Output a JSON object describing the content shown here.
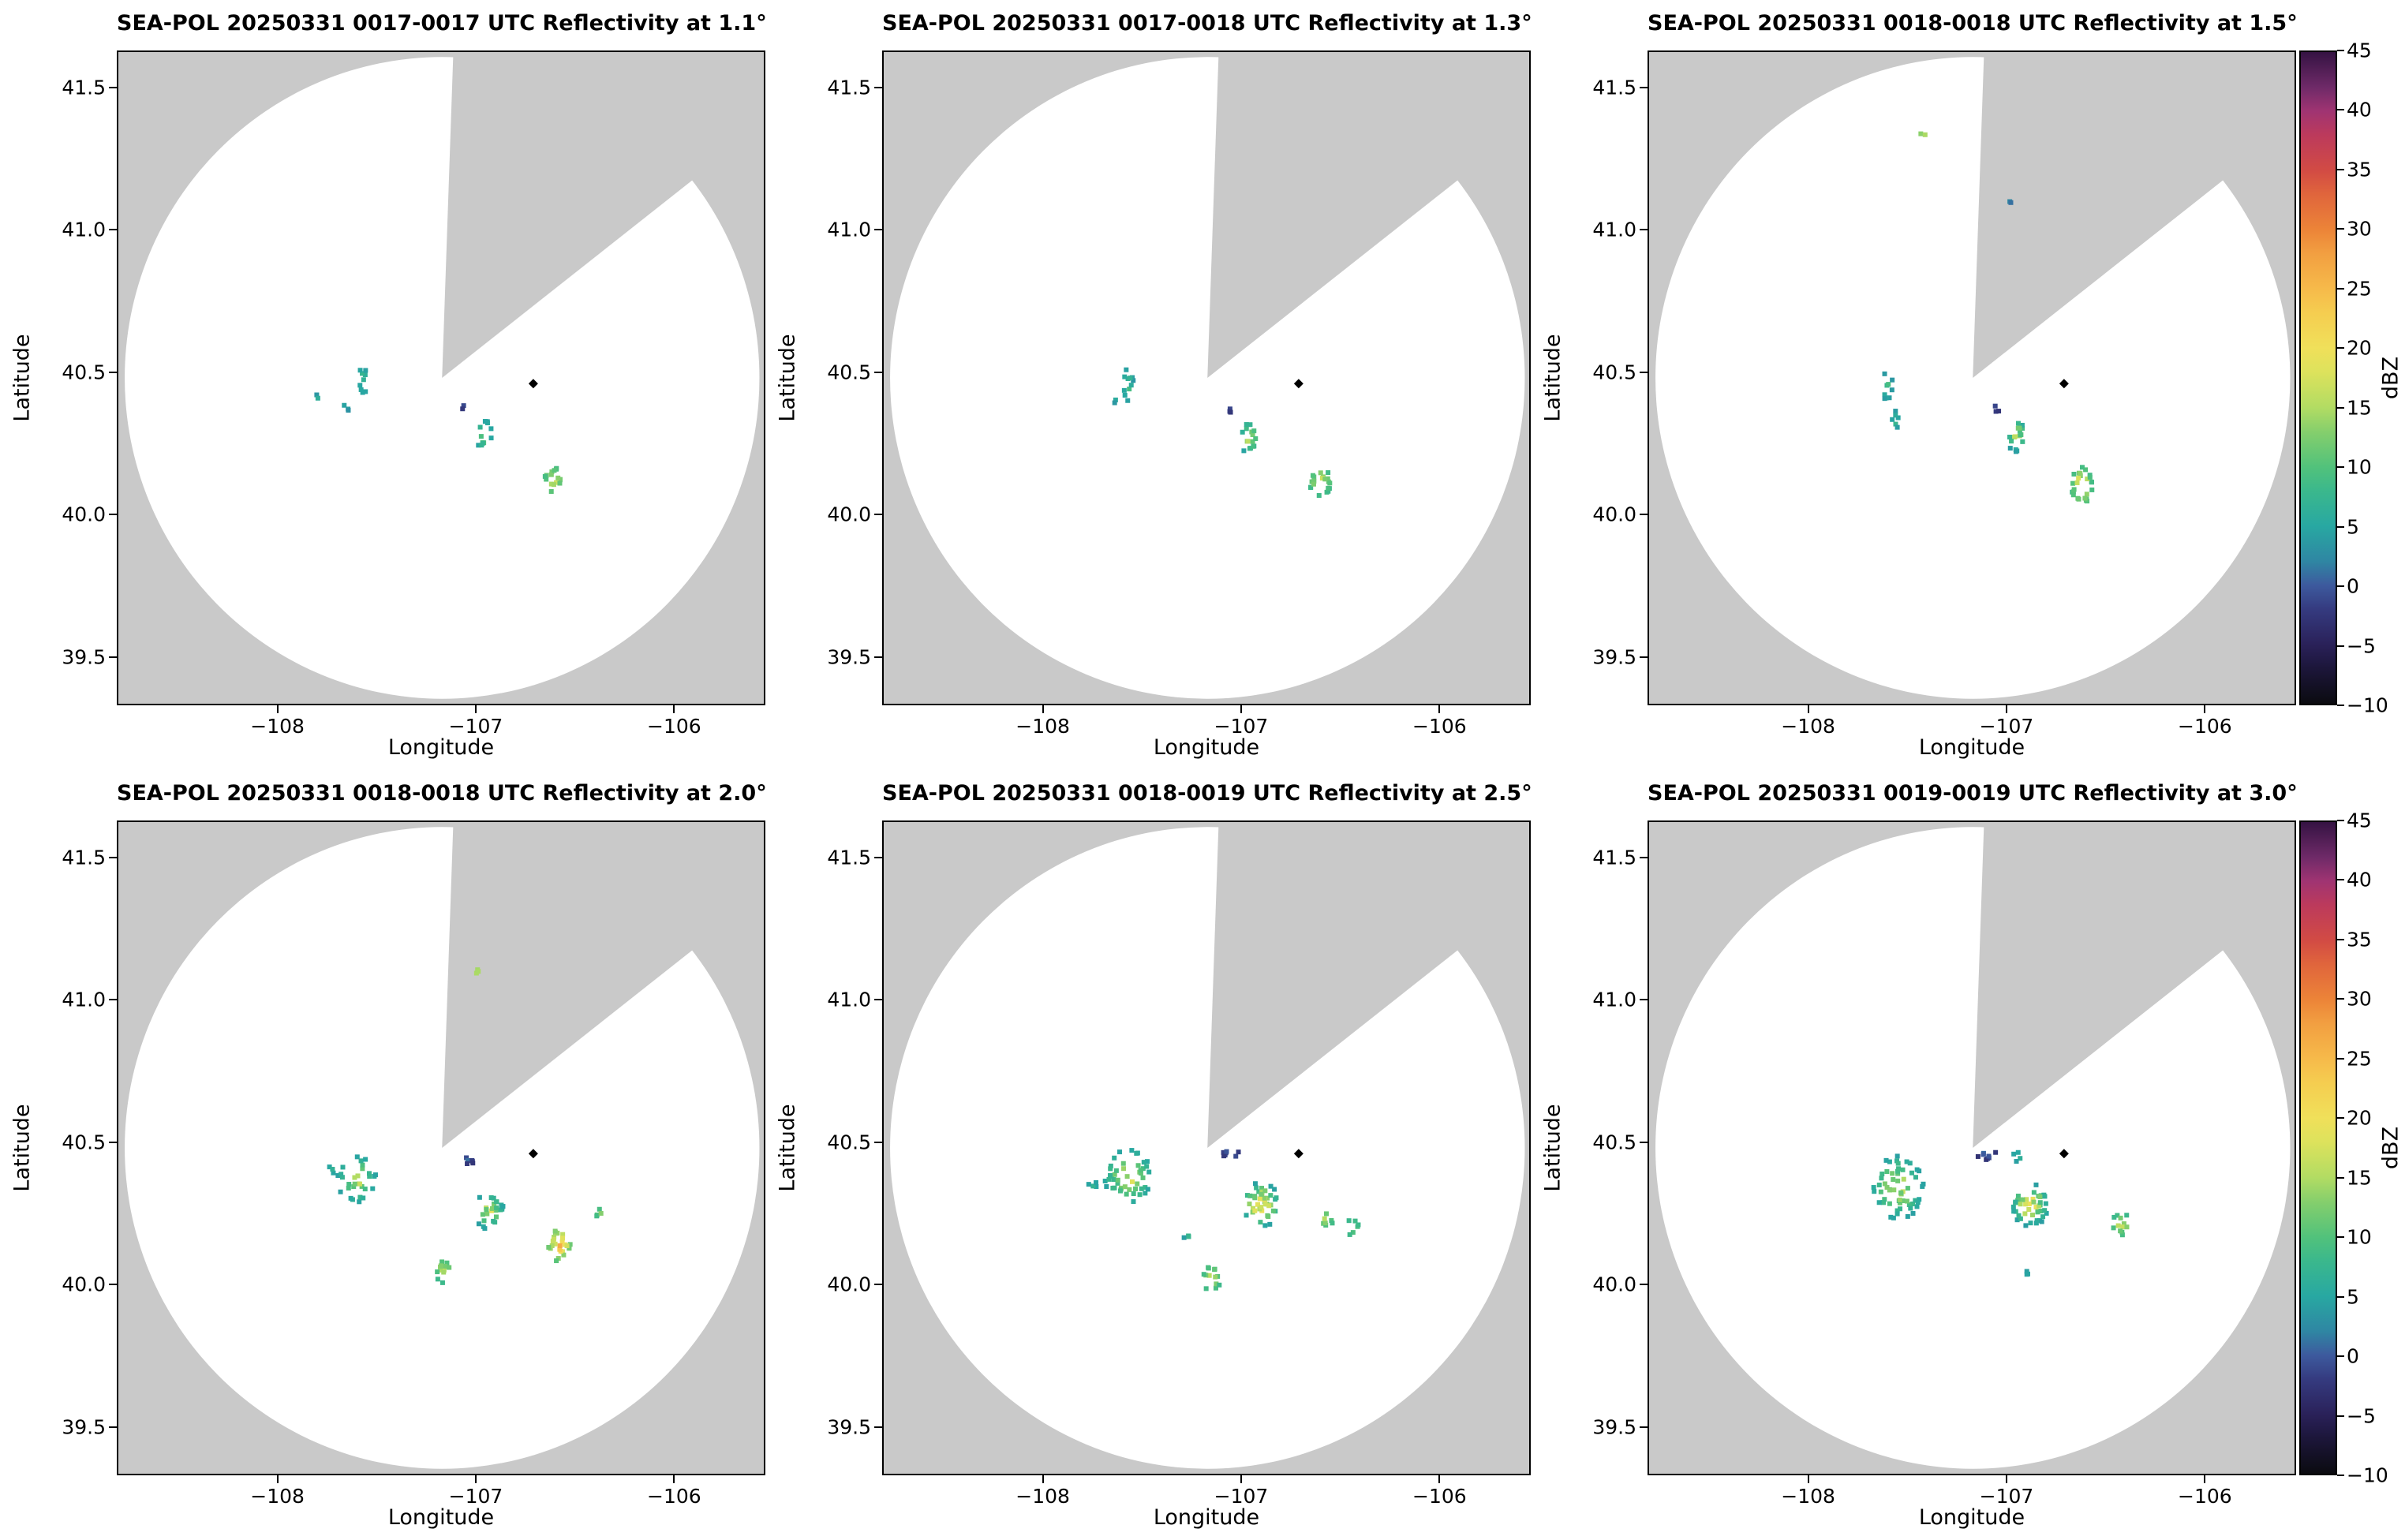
{
  "chart_data": {
    "type": "heatmap",
    "units": "dBZ",
    "axes": {
      "xlabel": "Longitude",
      "ylabel": "Latitude",
      "xlim": [
        -108.81,
        -105.54
      ],
      "ylim": [
        39.33,
        41.63
      ],
      "xticks": [
        {
          "v": -108,
          "label": "−108"
        },
        {
          "v": -107,
          "label": "−107"
        },
        {
          "v": -106,
          "label": "−106"
        }
      ],
      "yticks": [
        {
          "v": 39.5,
          "label": "39.5"
        },
        {
          "v": 40.0,
          "label": "40.0"
        },
        {
          "v": 40.5,
          "label": "40.5"
        },
        {
          "v": 41.0,
          "label": "41.0"
        },
        {
          "v": 41.5,
          "label": "41.5"
        }
      ]
    },
    "colorbar": {
      "label": "dBZ",
      "min": -10,
      "max": 45,
      "ticks": [
        {
          "v": 45,
          "label": "45"
        },
        {
          "v": 40,
          "label": "40"
        },
        {
          "v": 35,
          "label": "35"
        },
        {
          "v": 30,
          "label": "30"
        },
        {
          "v": 25,
          "label": "25"
        },
        {
          "v": 20,
          "label": "20"
        },
        {
          "v": 15,
          "label": "15"
        },
        {
          "v": 10,
          "label": "10"
        },
        {
          "v": 5,
          "label": "5"
        },
        {
          "v": 0,
          "label": "0"
        },
        {
          "v": -5,
          "label": "−5"
        },
        {
          "v": -10,
          "label": "−10"
        }
      ],
      "stops": [
        {
          "v": -10,
          "c": "#0b0b10"
        },
        {
          "v": -7,
          "c": "#1c163a"
        },
        {
          "v": -5,
          "c": "#2a2159"
        },
        {
          "v": -2,
          "c": "#353b80"
        },
        {
          "v": 0,
          "c": "#3d5a9e"
        },
        {
          "v": 2,
          "c": "#2f86a3"
        },
        {
          "v": 5,
          "c": "#28a8a2"
        },
        {
          "v": 8,
          "c": "#3bb88c"
        },
        {
          "v": 10,
          "c": "#52c27b"
        },
        {
          "v": 13,
          "c": "#86cf6c"
        },
        {
          "v": 15,
          "c": "#b2dc63"
        },
        {
          "v": 18,
          "c": "#dde25c"
        },
        {
          "v": 20,
          "c": "#f0e05a"
        },
        {
          "v": 23,
          "c": "#f5cd50"
        },
        {
          "v": 25,
          "c": "#f6ba4a"
        },
        {
          "v": 28,
          "c": "#f29f41"
        },
        {
          "v": 30,
          "c": "#ec8438"
        },
        {
          "v": 33,
          "c": "#e0653c"
        },
        {
          "v": 35,
          "c": "#d24b44"
        },
        {
          "v": 38,
          "c": "#bc3a5c"
        },
        {
          "v": 40,
          "c": "#a03472"
        },
        {
          "v": 42,
          "c": "#6f2a68"
        },
        {
          "v": 45,
          "c": "#351343"
        }
      ]
    },
    "radar": {
      "outside_color": "#c9c9c9",
      "coverage_color": "#ffffff",
      "center_lon": -107.17,
      "center_lat": 40.48,
      "radius_lon_deg": 1.6,
      "radius_lat_deg": 1.127,
      "wedge_az1": 2,
      "wedge_az2": 52,
      "marker_lon": -106.71,
      "marker_lat": 40.46
    },
    "panels": [
      {
        "title": "SEA-POL 20250331 0017-0017 UTC Reflectivity at 1.1°",
        "elevation_deg": 1.1,
        "clusters": [
          {
            "lon": -107.57,
            "lat": 40.47,
            "rx": 0.025,
            "ry": 0.065,
            "n": 9,
            "dbz": [
              3,
              13
            ]
          },
          {
            "lon": -107.65,
            "lat": 40.38,
            "rx": 0.02,
            "ry": 0.015,
            "n": 3,
            "dbz": [
              3,
              9
            ]
          },
          {
            "lon": -107.8,
            "lat": 40.41,
            "rx": 0.012,
            "ry": 0.012,
            "n": 2,
            "dbz": [
              3,
              8
            ]
          },
          {
            "lon": -107.06,
            "lat": 40.38,
            "rx": 0.012,
            "ry": 0.015,
            "n": 2,
            "dbz": [
              -3,
              1
            ]
          },
          {
            "lon": -106.96,
            "lat": 40.28,
            "rx": 0.045,
            "ry": 0.055,
            "n": 13,
            "dbz": [
              4,
              17
            ]
          },
          {
            "lon": -106.61,
            "lat": 40.12,
            "rx": 0.05,
            "ry": 0.05,
            "n": 16,
            "dbz": [
              8,
              23
            ]
          }
        ]
      },
      {
        "title": "SEA-POL 20250331 0017-0018 UTC Reflectivity at 1.3°",
        "elevation_deg": 1.3,
        "clusters": [
          {
            "lon": -107.57,
            "lat": 40.46,
            "rx": 0.028,
            "ry": 0.075,
            "n": 11,
            "dbz": [
              3,
              13
            ]
          },
          {
            "lon": -107.63,
            "lat": 40.4,
            "rx": 0.015,
            "ry": 0.012,
            "n": 2,
            "dbz": [
              3,
              8
            ]
          },
          {
            "lon": -107.06,
            "lat": 40.375,
            "rx": 0.015,
            "ry": 0.02,
            "n": 3,
            "dbz": [
              -3,
              2
            ]
          },
          {
            "lon": -106.96,
            "lat": 40.27,
            "rx": 0.05,
            "ry": 0.06,
            "n": 17,
            "dbz": [
              4,
              21
            ]
          },
          {
            "lon": -106.6,
            "lat": 40.115,
            "rx": 0.055,
            "ry": 0.05,
            "n": 20,
            "dbz": [
              8,
              24
            ]
          }
        ]
      },
      {
        "title": "SEA-POL 20250331 0018-0018 UTC Reflectivity at 1.5°",
        "elevation_deg": 1.5,
        "clusters": [
          {
            "lon": -107.42,
            "lat": 41.33,
            "rx": 0.018,
            "ry": 0.012,
            "n": 2,
            "dbz": [
              13,
              18
            ]
          },
          {
            "lon": -106.99,
            "lat": 41.1,
            "rx": 0.02,
            "ry": 0.008,
            "n": 2,
            "dbz": [
              0,
              6
            ]
          },
          {
            "lon": -107.6,
            "lat": 40.45,
            "rx": 0.028,
            "ry": 0.06,
            "n": 9,
            "dbz": [
              3,
              12
            ]
          },
          {
            "lon": -107.56,
            "lat": 40.33,
            "rx": 0.022,
            "ry": 0.038,
            "n": 6,
            "dbz": [
              3,
              11
            ]
          },
          {
            "lon": -107.05,
            "lat": 40.375,
            "rx": 0.015,
            "ry": 0.02,
            "n": 3,
            "dbz": [
              -3,
              2
            ]
          },
          {
            "lon": -106.95,
            "lat": 40.28,
            "rx": 0.05,
            "ry": 0.06,
            "n": 18,
            "dbz": [
              4,
              21
            ]
          },
          {
            "lon": -106.62,
            "lat": 40.1,
            "rx": 0.055,
            "ry": 0.07,
            "n": 26,
            "dbz": [
              8,
              28
            ]
          }
        ]
      },
      {
        "title": "SEA-POL 20250331 0018-0018 UTC Reflectivity at 2.0°",
        "elevation_deg": 2.0,
        "clusters": [
          {
            "lon": -107.0,
            "lat": 41.1,
            "rx": 0.025,
            "ry": 0.01,
            "n": 3,
            "dbz": [
              13,
              19
            ]
          },
          {
            "lon": -107.6,
            "lat": 40.37,
            "rx": 0.1,
            "ry": 0.085,
            "n": 30,
            "dbz": [
              4,
              21
            ]
          },
          {
            "lon": -107.73,
            "lat": 40.4,
            "rx": 0.02,
            "ry": 0.02,
            "n": 3,
            "dbz": [
              4,
              10
            ]
          },
          {
            "lon": -107.04,
            "lat": 40.44,
            "rx": 0.045,
            "ry": 0.018,
            "n": 6,
            "dbz": [
              -3,
              3
            ]
          },
          {
            "lon": -106.93,
            "lat": 40.26,
            "rx": 0.075,
            "ry": 0.07,
            "n": 28,
            "dbz": [
              4,
              21
            ]
          },
          {
            "lon": -107.16,
            "lat": 40.05,
            "rx": 0.045,
            "ry": 0.045,
            "n": 13,
            "dbz": [
              8,
              20
            ]
          },
          {
            "lon": -106.58,
            "lat": 40.14,
            "rx": 0.065,
            "ry": 0.06,
            "n": 26,
            "dbz": [
              10,
              29
            ]
          },
          {
            "lon": -106.37,
            "lat": 40.25,
            "rx": 0.03,
            "ry": 0.02,
            "n": 4,
            "dbz": [
              8,
              15
            ]
          }
        ]
      },
      {
        "title": "SEA-POL 20250331 0018-0019 UTC Reflectivity at 2.5°",
        "elevation_deg": 2.5,
        "clusters": [
          {
            "lon": -107.57,
            "lat": 40.38,
            "rx": 0.125,
            "ry": 0.1,
            "n": 48,
            "dbz": [
              4,
              24
            ]
          },
          {
            "lon": -107.75,
            "lat": 40.35,
            "rx": 0.025,
            "ry": 0.02,
            "n": 4,
            "dbz": [
              4,
              10
            ]
          },
          {
            "lon": -107.05,
            "lat": 40.46,
            "rx": 0.05,
            "ry": 0.02,
            "n": 7,
            "dbz": [
              -3,
              4
            ]
          },
          {
            "lon": -106.9,
            "lat": 40.28,
            "rx": 0.095,
            "ry": 0.08,
            "n": 44,
            "dbz": [
              4,
              30
            ]
          },
          {
            "lon": -107.15,
            "lat": 40.02,
            "rx": 0.045,
            "ry": 0.05,
            "n": 13,
            "dbz": [
              8,
              21
            ]
          },
          {
            "lon": -106.57,
            "lat": 40.23,
            "rx": 0.04,
            "ry": 0.03,
            "n": 7,
            "dbz": [
              8,
              18
            ]
          },
          {
            "lon": -106.44,
            "lat": 40.2,
            "rx": 0.035,
            "ry": 0.028,
            "n": 6,
            "dbz": [
              8,
              16
            ]
          },
          {
            "lon": -107.27,
            "lat": 40.17,
            "rx": 0.02,
            "ry": 0.013,
            "n": 3,
            "dbz": [
              4,
              10
            ]
          }
        ]
      },
      {
        "title": "SEA-POL 20250331 0019-0019 UTC Reflectivity at 3.0°",
        "elevation_deg": 3.0,
        "clusters": [
          {
            "lon": -107.55,
            "lat": 40.34,
            "rx": 0.135,
            "ry": 0.115,
            "n": 62,
            "dbz": [
              4,
              22
            ]
          },
          {
            "lon": -107.1,
            "lat": 40.46,
            "rx": 0.05,
            "ry": 0.022,
            "n": 8,
            "dbz": [
              -3,
              4
            ]
          },
          {
            "lon": -106.94,
            "lat": 40.45,
            "rx": 0.03,
            "ry": 0.02,
            "n": 4,
            "dbz": [
              4,
              11
            ]
          },
          {
            "lon": -106.88,
            "lat": 40.28,
            "rx": 0.095,
            "ry": 0.075,
            "n": 46,
            "dbz": [
              4,
              28
            ]
          },
          {
            "lon": -106.42,
            "lat": 40.21,
            "rx": 0.05,
            "ry": 0.04,
            "n": 12,
            "dbz": [
              8,
              20
            ]
          },
          {
            "lon": -106.88,
            "lat": 40.04,
            "rx": 0.02,
            "ry": 0.018,
            "n": 3,
            "dbz": [
              4,
              10
            ]
          }
        ]
      }
    ]
  }
}
